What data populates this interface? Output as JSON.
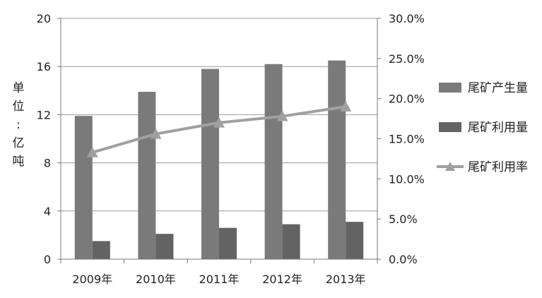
{
  "chart_data": {
    "type": "bar",
    "categories": [
      "2009年",
      "2010年",
      "2011年",
      "2012年",
      "2013年"
    ],
    "series": [
      {
        "name": "尾矿产生量",
        "kind": "bar",
        "axis": "left",
        "color": "#7a7a7a",
        "values": [
          11.9,
          13.9,
          15.8,
          16.2,
          16.5
        ]
      },
      {
        "name": "尾矿利用量",
        "kind": "bar",
        "axis": "left",
        "color": "#636363",
        "values": [
          1.5,
          2.1,
          2.6,
          2.9,
          3.1
        ]
      },
      {
        "name": "尾矿利用率",
        "kind": "line",
        "axis": "right",
        "color": "#a0a0a0",
        "marker": "triangle",
        "values": [
          0.133,
          0.156,
          0.17,
          0.178,
          0.19
        ]
      }
    ],
    "y_left": {
      "label": "单位：亿吨",
      "ylim": [
        0,
        20
      ],
      "ticks": [
        0,
        4,
        8,
        12,
        16,
        20
      ],
      "tick_labels": [
        "0",
        "4",
        "8",
        "12",
        "16",
        "20"
      ]
    },
    "y_right": {
      "ylim": [
        0,
        0.3
      ],
      "ticks": [
        0,
        0.05,
        0.1,
        0.15,
        0.2,
        0.25,
        0.3
      ],
      "tick_labels": [
        "0.0%",
        "5.0%",
        "10.0%",
        "15.0%",
        "20.0%",
        "25.0%",
        "30.0%"
      ]
    },
    "grid": true,
    "legend_position": "right"
  }
}
